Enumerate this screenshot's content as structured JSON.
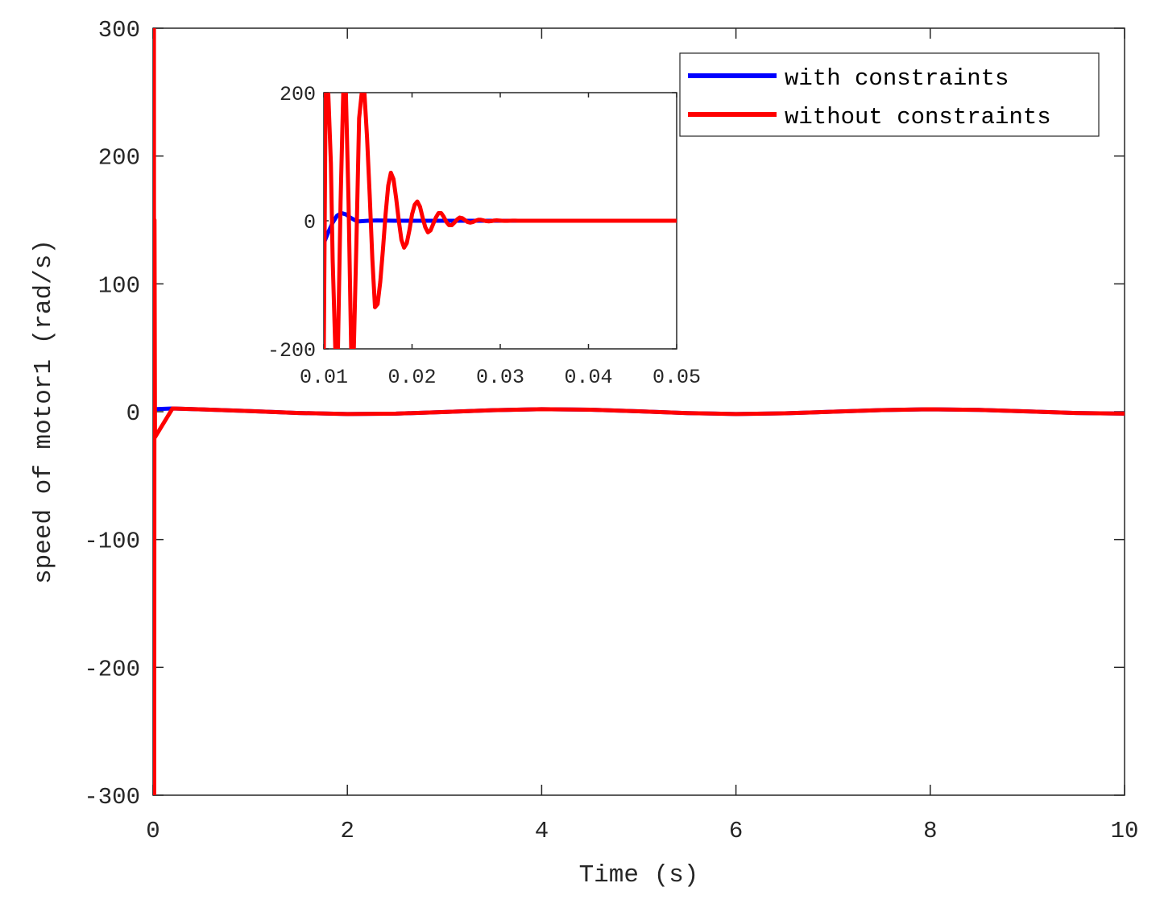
{
  "chart_data": [
    {
      "id": "main",
      "type": "line",
      "title": "",
      "xlabel": "Time (s)",
      "ylabel": "speed of motor1 (rad/s)",
      "xlim": [
        0,
        10
      ],
      "ylim": [
        -300,
        300
      ],
      "xticks": [
        0,
        2,
        4,
        6,
        8,
        10
      ],
      "yticks": [
        -300,
        -200,
        -100,
        0,
        100,
        200,
        300
      ],
      "xtick_labels": [
        "0",
        "2",
        "4",
        "6",
        "8",
        "10"
      ],
      "ytick_labels": [
        "-300",
        "-200",
        "-100",
        "0",
        "100",
        "200",
        "300"
      ],
      "grid": false,
      "legend": {
        "placement": "top-right",
        "entries": [
          {
            "label": "with constraints",
            "color": "#0000ff"
          },
          {
            "label": "without constraints",
            "color": "#ff0000"
          }
        ]
      },
      "series": [
        {
          "name": "with constraints",
          "color": "#0000ff",
          "x": [
            0,
            0.002,
            0.005,
            0.01,
            0.2,
            0.5,
            1.0,
            1.5,
            2.0,
            2.5,
            3.0,
            3.5,
            4.0,
            4.5,
            5.0,
            5.5,
            6.0,
            6.5,
            7.0,
            7.5,
            8.0,
            8.5,
            9.0,
            9.5,
            10.0
          ],
          "y": [
            0,
            -20,
            5,
            2,
            2.5,
            1.8,
            0.5,
            -1.0,
            -1.8,
            -1.5,
            -0.2,
            1.2,
            2.0,
            1.6,
            0.3,
            -1.1,
            -1.8,
            -1.3,
            0.0,
            1.3,
            1.9,
            1.4,
            0.2,
            -1.0,
            -1.5
          ]
        },
        {
          "name": "without constraints",
          "color": "#ff0000",
          "x": [
            0,
            0.003,
            0.006,
            0.009,
            0.012,
            0.015,
            0.02,
            0.2,
            0.5,
            1.0,
            1.5,
            2.0,
            2.5,
            3.0,
            3.5,
            4.0,
            4.5,
            5.0,
            5.5,
            6.0,
            6.5,
            7.0,
            7.5,
            8.0,
            8.5,
            9.0,
            9.5,
            10.0
          ],
          "y": [
            0,
            300,
            -300,
            300,
            -300,
            150,
            -20,
            2.5,
            1.8,
            0.5,
            -1.0,
            -1.8,
            -1.5,
            -0.2,
            1.2,
            2.0,
            1.6,
            0.3,
            -1.1,
            -1.8,
            -1.3,
            0.0,
            1.3,
            1.9,
            1.4,
            0.2,
            -1.0,
            -1.5
          ]
        }
      ]
    },
    {
      "id": "inset",
      "type": "line",
      "title": "",
      "xlabel": "",
      "ylabel": "",
      "xlim": [
        0.01,
        0.05
      ],
      "ylim": [
        -200,
        200
      ],
      "xticks": [
        0.01,
        0.02,
        0.03,
        0.04,
        0.05
      ],
      "yticks": [
        -200,
        0,
        200
      ],
      "xtick_labels": [
        "0.01",
        "0.02",
        "0.03",
        "0.04",
        "0.05"
      ],
      "ytick_labels": [
        "-200",
        "0",
        "200"
      ],
      "grid": false,
      "series": [
        {
          "name": "with constraints",
          "color": "#0000ff",
          "x": [
            0.01,
            0.0105,
            0.011,
            0.0115,
            0.012,
            0.0125,
            0.013,
            0.0135,
            0.014,
            0.015,
            0.016,
            0.018,
            0.02,
            0.025,
            0.03,
            0.05
          ],
          "y": [
            -35,
            -18,
            -3,
            8,
            12,
            10,
            5,
            1,
            -1,
            0,
            0.5,
            0,
            0,
            0,
            0,
            0
          ]
        },
        {
          "name": "without constraints",
          "color": "#ff0000",
          "x": [
            0.01,
            0.0102,
            0.0105,
            0.0108,
            0.011,
            0.0113,
            0.0116,
            0.0119,
            0.0122,
            0.0125,
            0.0128,
            0.0131,
            0.0134,
            0.0137,
            0.014,
            0.0143,
            0.0146,
            0.0149,
            0.0152,
            0.0155,
            0.0158,
            0.0161,
            0.0164,
            0.0167,
            0.017,
            0.0173,
            0.0176,
            0.0179,
            0.0182,
            0.0185,
            0.0188,
            0.0191,
            0.0194,
            0.0197,
            0.02,
            0.0203,
            0.0206,
            0.0209,
            0.0212,
            0.0215,
            0.0218,
            0.0221,
            0.0224,
            0.0227,
            0.023,
            0.0233,
            0.0236,
            0.0239,
            0.0242,
            0.0245,
            0.0248,
            0.0251,
            0.0254,
            0.0257,
            0.026,
            0.0263,
            0.0266,
            0.0269,
            0.0272,
            0.0275,
            0.0278,
            0.0281,
            0.0284,
            0.0287,
            0.029,
            0.0293,
            0.0296,
            0.0299,
            0.0302,
            0.0305,
            0.0308,
            0.0311,
            0.0314,
            0.0317,
            0.032,
            0.033,
            0.035,
            0.04,
            0.05
          ],
          "y": [
            -200,
            200,
            200,
            90,
            -60,
            -200,
            -200,
            30,
            200,
            200,
            30,
            -200,
            -200,
            -30,
            160,
            200,
            200,
            130,
            40,
            -60,
            -135,
            -130,
            -95,
            -45,
            10,
            55,
            75,
            65,
            35,
            0,
            -30,
            -42,
            -35,
            -15,
            10,
            25,
            30,
            22,
            5,
            -10,
            -18,
            -15,
            -5,
            5,
            12,
            12,
            6,
            -2,
            -7,
            -7,
            -3,
            2,
            5,
            4,
            1,
            -2,
            -3,
            -2,
            0,
            1.5,
            1.5,
            0.5,
            -0.5,
            -1,
            -0.5,
            0.3,
            0.6,
            0.3,
            0,
            -0.2,
            -0.2,
            0,
            0.1,
            0.1,
            0,
            0,
            0,
            0,
            0
          ]
        }
      ]
    }
  ]
}
